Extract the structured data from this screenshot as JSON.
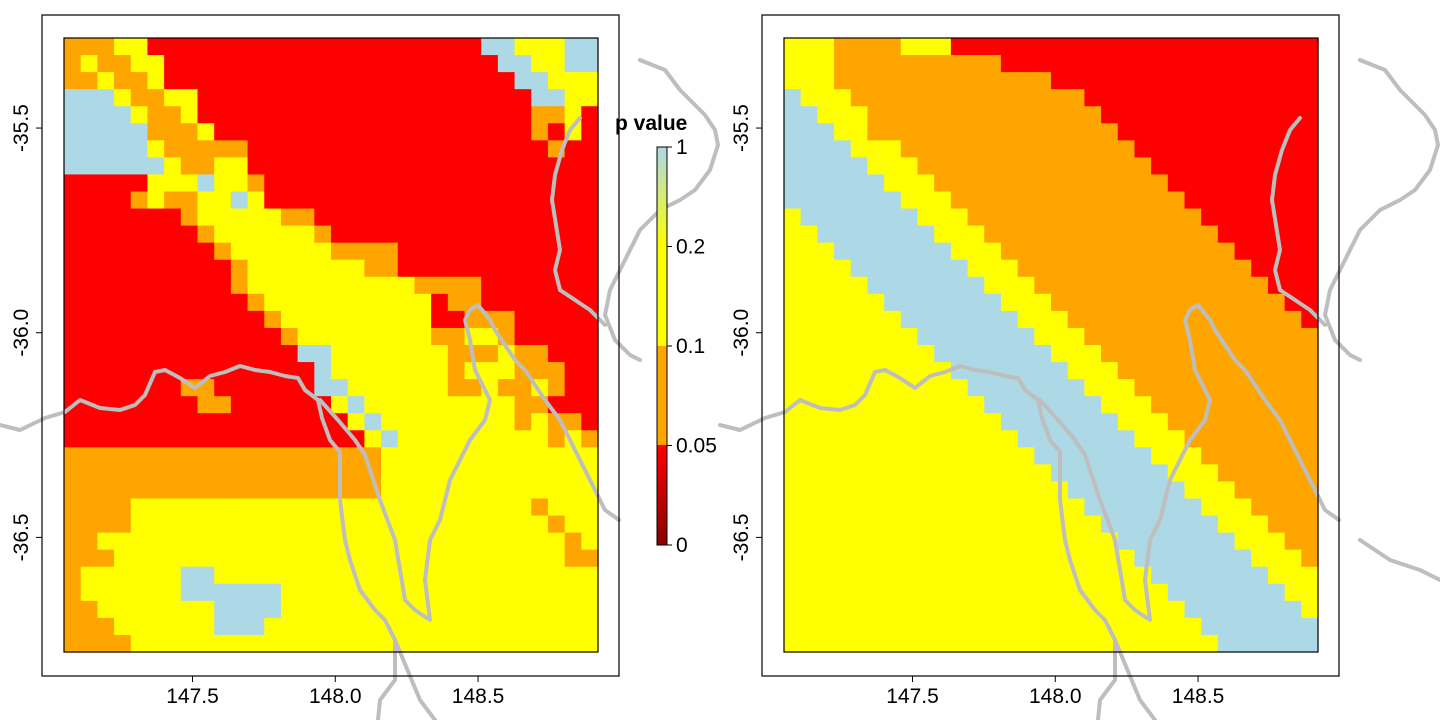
{
  "legend": {
    "title": "p value",
    "breaks": [
      0,
      0.05,
      0.1,
      0.2,
      1
    ],
    "labels": [
      "0",
      "0.05",
      "0.1",
      "0.2",
      "1"
    ],
    "colors": [
      "#ff0000",
      "#ffa500",
      "#ffff00",
      "#add8e6"
    ],
    "gradient": {
      "lower": [
        "#8b0000",
        "#ff0000"
      ],
      "upper": [
        "#ffff00",
        "#add8e6"
      ]
    }
  },
  "map_extent": {
    "lon": [
      147.05,
      148.92
    ],
    "lat": [
      -36.78,
      -35.28
    ]
  },
  "axes": {
    "x_ticks": [
      "147.5",
      "148.0",
      "148.5"
    ],
    "y_ticks": [
      "-35.5",
      "-36.0",
      "-36.5"
    ]
  },
  "boundary_color": "#bebebe",
  "panels": [
    {
      "rows": [
        "11122000000000000000000003322233",
        "12112200000000000000000000332233",
        "11211200000000000000000000033222",
        "33321122000000000000000000003322",
        "33332112000000000000000000001120",
        "33333111200000000000000000001020",
        "33333211111000000000000000000100",
        "33333321122000000000000000000000",
        "00000222322100000000000000000000",
        "00001211223200000000000000000000",
        "00000001222221100000000000000000",
        "00000000122222210000000000000000",
        "00000000012222221111000000000000",
        "00000000001222222211000000000000",
        "00000000001222222222211110000000",
        "00000000000122222222220110000000",
        "00000000000012222222220011100000",
        "00000000000001222222221122100000",
        "00000000000000332222222111211000",
        "00000000000000032222222122211100",
        "00000001100000033222222112112100",
        "00000000110000002322222222211000",
        "00000000000000000232222222212110",
        "00000000000000000023222222222121",
        "11111111111111111112222222222222",
        "11111111111111111112222222222222",
        "11111111111111111112222222222222",
        "11112222222222222222222222221222",
        "11112222222222222222222222222122",
        "11222222222222222222222222222212",
        "11122222222222222222222222222211",
        "12222223322222222222222222222222",
        "12222223333332222222222222222222",
        "11222222233332222222222222222222",
        "11122222233322222222222222222222",
        "11112222222222222222222222222222"
      ]
    },
    {
      "rows": [
        "22211112220000000000000000000000",
        "22211111111110000000000000000000",
        "22211111111111110000000000000000",
        "32221111111111111100000000000000",
        "33222111111111111110000000000000",
        "33322111111111111111000000000000",
        "33332221111111111111100000000000",
        "33333222111111111111110000000000",
        "33333322211111111111111000000000",
        "33333332221111111111111100000000",
        "23333333222111111111111110000000",
        "22333333322211111111111111000000",
        "22233333332221111111111111100000",
        "22223333333222111111111111110000",
        "22222333333322211111111111111000",
        "22222233333332221111111111111100",
        "22222223333333222111111111111110",
        "22222222333333322211111111111111",
        "22222222233333332221111111111111",
        "22222222223333333222111111111111",
        "22222222222333333322211111111111",
        "22222222222233333332221111111111",
        "22222222222223333333222111111111",
        "22222222222222333333322211111111",
        "22222222222222233333332221111111",
        "22222222222222223333333222111111",
        "22222222222222222333333322211111",
        "22222222222222222233333332221111",
        "22222222222222222223333333222111",
        "22222222222222222222333333322211",
        "22222222222222222222233333332221",
        "22222222222222222222223333333222",
        "22222222222222222222222333333322",
        "22222222222222222222222233333332",
        "22222222222222222222222223333333",
        "22222222222222222222222222333333"
      ]
    }
  ]
}
